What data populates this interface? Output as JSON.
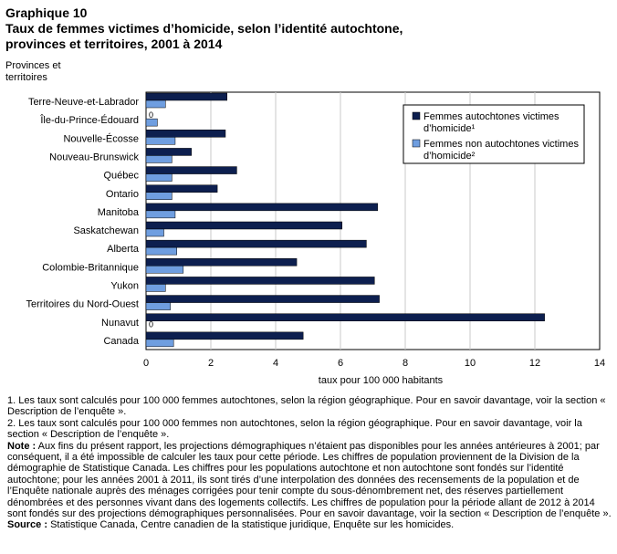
{
  "title_line1": "Graphique  10",
  "title_line2": "Taux de femmes victimes d’homicide,  selon l’identité  autochtone,",
  "title_line3": "provinces  et territoires,  2001 à 2014",
  "y_header_line1": "Provinces et",
  "y_header_line2": "territoires",
  "chart_data": {
    "type": "bar",
    "orientation": "horizontal",
    "categories": [
      "Terre-Neuve-et-Labrador",
      "Île-du-Prince-Édouard",
      "Nouvelle-Écosse",
      "Nouveau-Brunswick",
      "Québec",
      "Ontario",
      "Manitoba",
      "Saskatchewan",
      "Alberta",
      "Colombie-Britannique",
      "Yukon",
      "Territoires du Nord-Ouest",
      "Nunavut",
      "Canada"
    ],
    "series": [
      {
        "name": "Femmes autochtones victimes d’homicide¹",
        "color": "#0d1f4f",
        "values": [
          2.5,
          0,
          2.45,
          1.4,
          2.8,
          2.2,
          7.15,
          6.05,
          6.8,
          4.65,
          7.05,
          7.2,
          12.3,
          4.85
        ]
      },
      {
        "name": "Femmes non autochtones victimes d’homicide²",
        "color": "#6f9ee0",
        "values": [
          0.6,
          0.35,
          0.9,
          0.8,
          0.8,
          0.8,
          0.9,
          0.55,
          0.95,
          1.15,
          0.6,
          0.75,
          0,
          0.85
        ]
      }
    ],
    "zero_labels": [
      {
        "category": "Île-du-Prince-Édouard",
        "series": 0,
        "text": "0"
      },
      {
        "category": "Nunavut",
        "series": 1,
        "text": "0"
      }
    ],
    "xlabel": "taux pour 100 000 habitants",
    "xlim": [
      0,
      14
    ],
    "xticks": [
      0,
      2,
      4,
      6,
      8,
      10,
      12,
      14
    ],
    "grid": "vertical",
    "legend_position": "top-right"
  },
  "notes": {
    "n1": "1. Les taux sont calculés pour 100 000 femmes autochtones, selon la région géographique. Pour en savoir davantage, voir la section « Description de l’enquête ».",
    "n2": "2. Les taux sont calculés pour 100 000 femmes non autochtones, selon la région géographique. Pour en savoir davantage, voir la section « Description de l’enquête ».",
    "note_label": "Note :",
    "note_text": " Aux fins du présent rapport, les projections démographiques n’étaient pas disponibles pour les années antérieures à 2001; par conséquent, il a été impossible de calculer les taux pour cette période. Les chiffres de population proviennent de la Division de la démographie de Statistique Canada. Les chiffres pour les populations autochtone et non autochtone sont fondés sur l’identité autochtone; pour les années 2001 à 2011, ils sont tirés d’une interpolation des données des recensements de la population et de l’Enquête nationale auprès des ménages corrigées pour tenir compte du sous-dénombrement net, des réserves partiellement dénombrées et des personnes vivant dans des logements collectifs. Les chiffres de population pour la période allant de 2012 à 2014 sont fondés sur des projections démographiques personnalisées. Pour en savoir davantage, voir la section « Description de l’enquête ».",
    "source_label": "Source :",
    "source_text": " Statistique Canada, Centre canadien de la statistique juridique, Enquête sur les homicides."
  }
}
